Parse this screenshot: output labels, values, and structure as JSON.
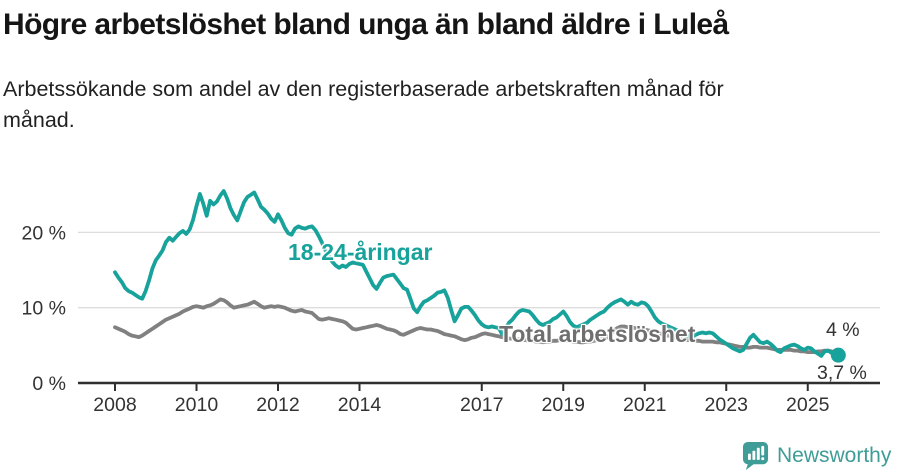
{
  "header": {
    "title": "Högre arbetslöshet bland unga än bland äldre i Luleå",
    "subtitle_line1": "Arbetssökande som andel av den registerbaserade arbetskraften månad för",
    "subtitle_line2": "månad."
  },
  "branding": {
    "logo_text": "Newsworthy",
    "logo_color": "#3f9c96",
    "logo_icon": "newsworthy-speech-bubble-barchart-icon"
  },
  "chart_data": {
    "type": "line",
    "title": "Högre arbetslöshet bland unga än bland äldre i Luleå",
    "subtitle": "Arbetssökande som andel av den registerbaserade arbetskraften månad för månad.",
    "xlabel": "",
    "ylabel": "",
    "x_unit": "monthly, Jan 2008 – Oct 2025",
    "start_year": 2008,
    "step_months": 1,
    "xlim": [
      2008,
      2026.3
    ],
    "ylim": [
      0,
      27
    ],
    "grid": "horizontal",
    "legend_position": "inline-labels",
    "x_ticks": [
      2008,
      2010,
      2012,
      2014,
      2017,
      2019,
      2021,
      2023,
      2025
    ],
    "x_tick_labels": [
      "2008",
      "2010",
      "2012",
      "2014",
      "2017",
      "2019",
      "2021",
      "2023",
      "2025"
    ],
    "y_ticks": [
      {
        "value": 0,
        "label": "0 %"
      },
      {
        "value": 10,
        "label": "10 %"
      },
      {
        "value": 20,
        "label": "20 %"
      }
    ],
    "colors": {
      "youth": "#17a29b",
      "total": "#808080",
      "total_label": "#6f6f6f",
      "axis": "#2f2f2f",
      "axis_text": "#333333",
      "grid": "#dddddd"
    },
    "series": [
      {
        "name": "Total arbetslöshet",
        "color": "#808080",
        "end_label": "4 %",
        "end_value": 4.0,
        "values": [
          7.4,
          7.2,
          7.0,
          6.8,
          6.5,
          6.3,
          6.2,
          6.1,
          6.3,
          6.6,
          6.9,
          7.2,
          7.5,
          7.8,
          8.1,
          8.4,
          8.6,
          8.8,
          9.0,
          9.2,
          9.5,
          9.7,
          9.9,
          10.1,
          10.2,
          10.1,
          10.0,
          10.2,
          10.3,
          10.5,
          10.8,
          11.1,
          11.0,
          10.7,
          10.3,
          10.0,
          10.1,
          10.2,
          10.3,
          10.4,
          10.6,
          10.8,
          10.5,
          10.2,
          10.0,
          10.1,
          10.2,
          10.1,
          10.2,
          10.1,
          10.0,
          9.8,
          9.6,
          9.5,
          9.6,
          9.7,
          9.5,
          9.4,
          9.3,
          8.9,
          8.5,
          8.4,
          8.5,
          8.6,
          8.5,
          8.4,
          8.3,
          8.2,
          8.0,
          7.6,
          7.2,
          7.1,
          7.2,
          7.3,
          7.4,
          7.5,
          7.6,
          7.7,
          7.6,
          7.4,
          7.2,
          7.1,
          7.0,
          6.8,
          6.5,
          6.4,
          6.6,
          6.8,
          7.0,
          7.2,
          7.3,
          7.2,
          7.1,
          7.1,
          7.0,
          6.9,
          6.7,
          6.5,
          6.4,
          6.3,
          6.2,
          6.0,
          5.8,
          5.7,
          5.8,
          6.0,
          6.1,
          6.3,
          6.5,
          6.6,
          6.5,
          6.4,
          6.3,
          6.2,
          6.1,
          6.0,
          5.9,
          5.9,
          5.8,
          5.8,
          5.7,
          5.7,
          5.6,
          5.6,
          5.5,
          5.5,
          5.4,
          5.5,
          5.5,
          5.6,
          5.6,
          5.7,
          5.7,
          5.6,
          5.6,
          5.5,
          5.5,
          5.4,
          5.4,
          5.5,
          5.5,
          5.6,
          5.7,
          5.8,
          5.9,
          6.1,
          6.5,
          7.0,
          7.3,
          7.5,
          7.5,
          7.4,
          7.4,
          7.3,
          7.2,
          7.1,
          7.1,
          7.0,
          6.9,
          6.8,
          6.7,
          6.5,
          6.4,
          6.3,
          6.1,
          6.0,
          5.9,
          5.8,
          5.7,
          5.7,
          5.7,
          5.6,
          5.6,
          5.5,
          5.5,
          5.5,
          5.5,
          5.4,
          5.4,
          5.3,
          5.2,
          5.1,
          5.0,
          4.9,
          4.8,
          4.8,
          4.7,
          4.7,
          4.8,
          4.8,
          4.7,
          4.7,
          4.7,
          4.6,
          4.5,
          4.4,
          4.4,
          4.4,
          4.4,
          4.4,
          4.3,
          4.3,
          4.2,
          4.2,
          4.1,
          4.1,
          4.1,
          4.2,
          4.2,
          4.3,
          4.3,
          4.2,
          4.1,
          4.0
        ]
      },
      {
        "name": "18-24-åringar",
        "color": "#17a29b",
        "end_label": "3,7 %",
        "end_value": 3.7,
        "values": [
          14.7,
          14.0,
          13.4,
          12.6,
          12.2,
          12.0,
          11.7,
          11.4,
          11.2,
          12.2,
          13.6,
          15.2,
          16.3,
          16.9,
          17.6,
          18.7,
          19.3,
          18.9,
          19.4,
          19.9,
          20.2,
          19.8,
          20.4,
          21.7,
          23.5,
          25.1,
          23.8,
          22.2,
          24.2,
          23.7,
          24.1,
          24.9,
          25.5,
          24.5,
          23.2,
          22.3,
          21.6,
          22.8,
          24.0,
          24.7,
          25.0,
          25.3,
          24.4,
          23.4,
          23.0,
          22.5,
          21.8,
          21.4,
          22.4,
          21.6,
          20.6,
          19.9,
          19.7,
          20.5,
          20.8,
          20.6,
          20.5,
          20.7,
          20.8,
          20.3,
          19.5,
          18.6,
          17.6,
          16.8,
          16.1,
          15.6,
          15.3,
          15.6,
          15.4,
          15.8,
          16.0,
          15.9,
          15.8,
          15.7,
          14.8,
          13.9,
          13.0,
          12.5,
          13.3,
          14.0,
          14.2,
          14.3,
          14.4,
          13.8,
          13.2,
          12.6,
          12.4,
          11.2,
          9.9,
          9.4,
          10.2,
          10.8,
          11.0,
          11.3,
          11.6,
          12.0,
          12.1,
          12.3,
          11.3,
          9.7,
          8.2,
          9.0,
          9.9,
          10.1,
          10.1,
          9.6,
          9.0,
          8.3,
          7.8,
          7.5,
          7.4,
          7.5,
          7.4,
          7.3,
          6.5,
          7.2,
          8.0,
          8.4,
          9.0,
          9.5,
          9.7,
          9.6,
          9.5,
          9.0,
          8.4,
          7.9,
          7.7,
          7.9,
          8.1,
          8.5,
          8.7,
          9.1,
          9.5,
          8.9,
          8.1,
          7.6,
          7.4,
          7.6,
          7.8,
          8.0,
          8.4,
          8.7,
          9.0,
          9.3,
          9.5,
          10.0,
          10.4,
          10.7,
          10.9,
          11.1,
          10.8,
          10.4,
          10.8,
          10.5,
          10.4,
          10.7,
          10.6,
          10.2,
          9.5,
          8.7,
          8.2,
          7.9,
          7.7,
          7.5,
          7.3,
          7.1,
          6.9,
          6.6,
          6.3,
          6.2,
          6.1,
          6.4,
          6.6,
          6.7,
          6.6,
          6.7,
          6.6,
          6.2,
          5.8,
          5.5,
          5.2,
          4.9,
          4.6,
          4.4,
          4.2,
          4.4,
          5.2,
          6.0,
          6.4,
          5.9,
          5.4,
          5.3,
          5.5,
          5.2,
          4.8,
          4.3,
          4.1,
          4.6,
          4.8,
          5.0,
          5.1,
          4.9,
          4.6,
          4.4,
          4.7,
          4.6,
          4.2,
          3.9,
          3.6,
          4.2,
          4.3,
          4.0,
          3.8,
          3.7
        ]
      }
    ],
    "annotations": [
      {
        "text": "4 %",
        "series": "Total arbetslöshet",
        "position": "end-of-line"
      },
      {
        "text": "3,7 %",
        "series": "18-24-åringar",
        "position": "end-of-line"
      }
    ]
  }
}
